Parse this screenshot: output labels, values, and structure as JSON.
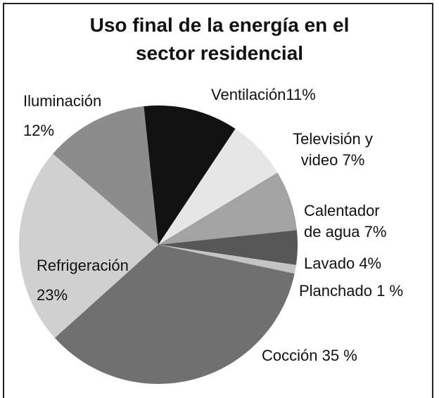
{
  "chart_data": {
    "type": "pie",
    "title": "Uso final de la energía en el sector residencial",
    "categories": [
      "Ventilación",
      "Televisión y video",
      "Calentador de agua",
      "Lavado",
      "Planchado",
      "Cocción",
      "Refrigeración",
      "Iluminación"
    ],
    "values": [
      11,
      7,
      7,
      4,
      1,
      35,
      23,
      12
    ],
    "value_labels": [
      "11%",
      "7%",
      "7%",
      "4%",
      "1 %",
      "35 %",
      "23%",
      "12%"
    ],
    "colors": [
      "#111111",
      "#e6e6e6",
      "#a3a3a3",
      "#575757",
      "#c4c4c4",
      "#707070",
      "#d0d0d0",
      "#8c8c8c"
    ]
  }
}
